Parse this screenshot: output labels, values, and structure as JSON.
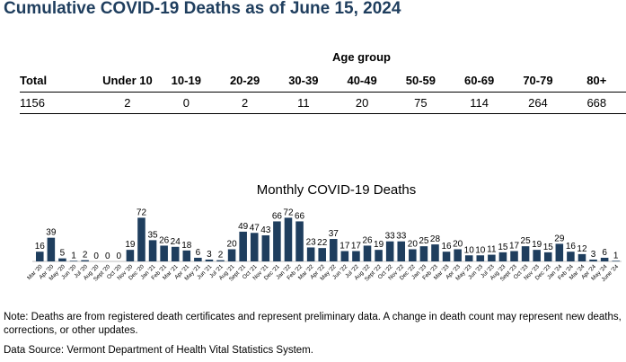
{
  "title": "Cumulative COVID-19 Deaths as of June 15, 2024",
  "table": {
    "group_header": "Age group",
    "total_header": "Total",
    "total_value": "1156",
    "age_groups": [
      "Under 10",
      "10-19",
      "20-29",
      "30-39",
      "40-49",
      "50-59",
      "60-69",
      "70-79",
      "80+"
    ],
    "age_values": [
      "2",
      "0",
      "2",
      "11",
      "20",
      "75",
      "114",
      "264",
      "668"
    ]
  },
  "chart_data": {
    "type": "bar",
    "title": "Monthly COVID-19 Deaths",
    "xlabel": "",
    "ylabel": "",
    "ylim": [
      0,
      80
    ],
    "grid": false,
    "legend": "none",
    "bar_color": "#1f3e5e",
    "categories": [
      "Mar '20",
      "Apr '20",
      "May '20",
      "Jun '20",
      "Jul '20",
      "Aug '20",
      "Sept '20",
      "Oct '20",
      "Nov '20",
      "Dec '20",
      "Jan '21",
      "Feb '21",
      "Mar '21",
      "Apr '21",
      "May '21",
      "Jun '21",
      "Jul '21",
      "Aug '21",
      "Sept '21",
      "Oct '21",
      "Nov '21",
      "Dec '21",
      "Jan '22",
      "Feb '22",
      "Mar '22",
      "Apr '22",
      "May '22",
      "Jun '22",
      "Jul '22",
      "Aug '22",
      "Sept '22",
      "Oct '22",
      "Nov '22",
      "Dec '22",
      "Jan '23",
      "Feb '23",
      "Mar '23",
      "Apr '23",
      "May '23",
      "Jun '23",
      "Jul '23",
      "Aug '23",
      "Sept '23",
      "Oct '23",
      "Nov '23",
      "Dec '23",
      "Jan '24",
      "Feb '24",
      "Mar '24",
      "Apr '24",
      "May '24",
      "June '24"
    ],
    "values": [
      16,
      39,
      5,
      1,
      2,
      0,
      0,
      0,
      19,
      72,
      35,
      26,
      24,
      18,
      6,
      3,
      2,
      20,
      49,
      47,
      43,
      66,
      72,
      66,
      23,
      22,
      37,
      17,
      17,
      26,
      19,
      33,
      33,
      20,
      25,
      28,
      16,
      20,
      10,
      10,
      11,
      15,
      17,
      25,
      19,
      15,
      29,
      16,
      12,
      3,
      6,
      1
    ]
  },
  "note": "Note: Deaths are from registered death certificates and represent preliminary data. A change in death count may represent new deaths, corrections, or other updates.",
  "source": "Data Source: Vermont Department of Health Vital Statistics System."
}
